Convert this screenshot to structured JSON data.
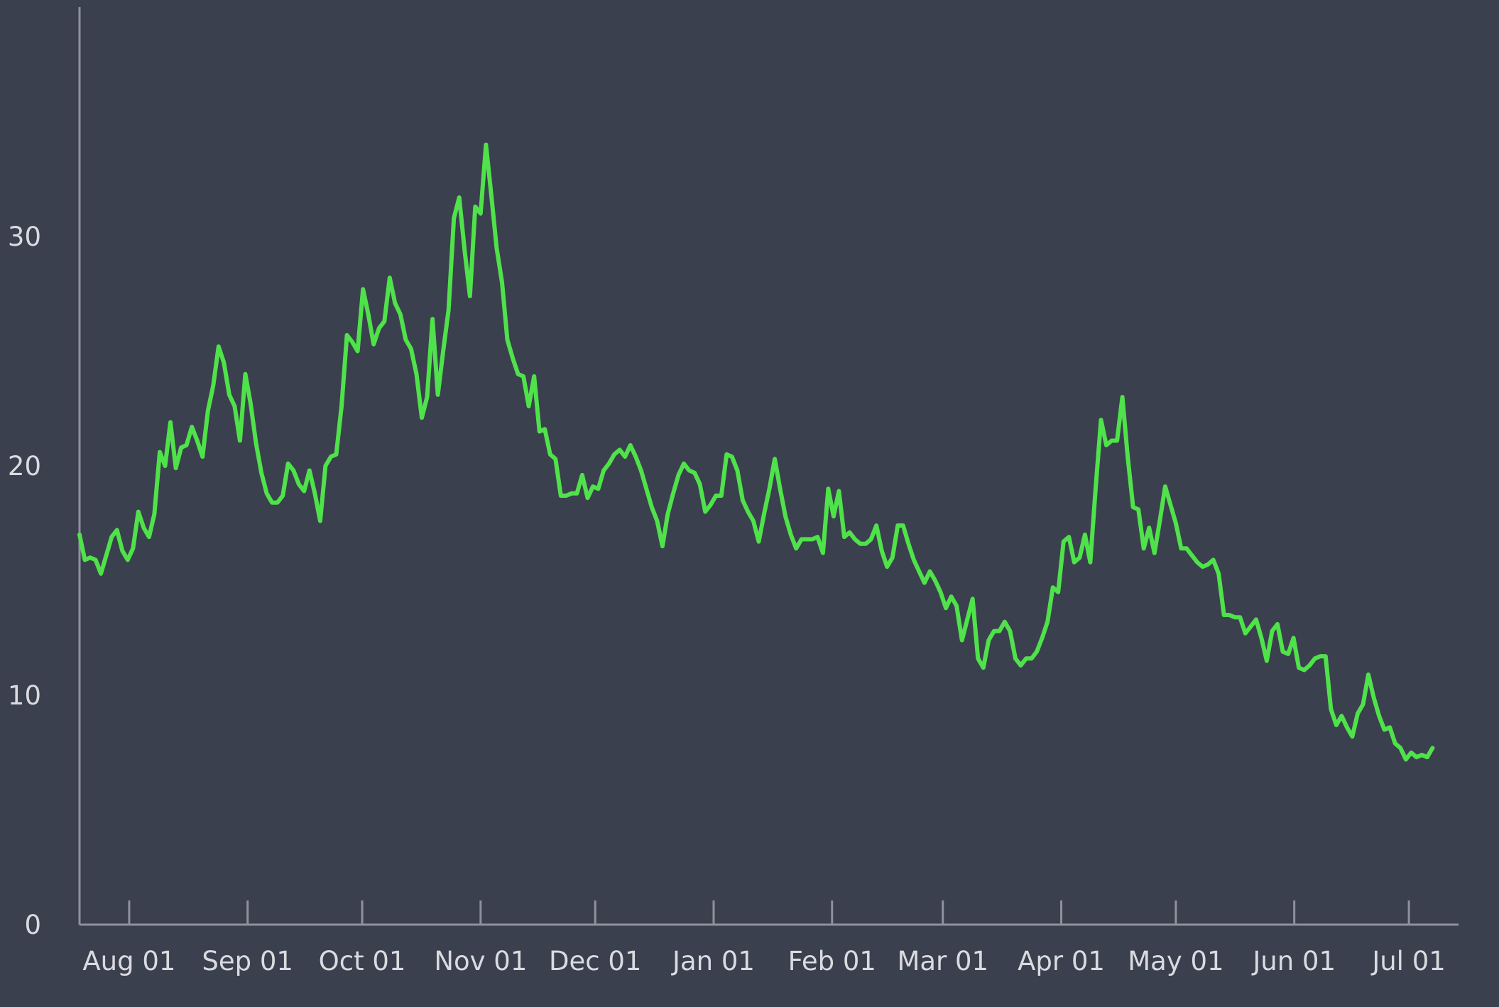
{
  "chart_data": {
    "type": "line",
    "title": "",
    "xlabel": "",
    "ylabel": "",
    "x_start": "2023-07-19",
    "x_step_days": 1.4,
    "xlim": [
      "2023-07-19",
      "2024-07-14"
    ],
    "ylim": [
      0,
      40
    ],
    "y_ticks": [
      0,
      10,
      20,
      30
    ],
    "y_tick_labels": [
      "0",
      "10",
      "20",
      "30"
    ],
    "x_ticks": [
      "2023-08-01",
      "2023-09-01",
      "2023-10-01",
      "2023-11-01",
      "2023-12-01",
      "2024-01-01",
      "2024-02-01",
      "2024-03-01",
      "2024-04-01",
      "2024-05-01",
      "2024-06-01",
      "2024-07-01"
    ],
    "x_tick_labels": [
      "Aug 01",
      "Sep 01",
      "Oct 01",
      "Nov 01",
      "Dec 01",
      "Jan 01",
      "Feb 01",
      "Mar 01",
      "Apr 01",
      "May 01",
      "Jun 01",
      "Jul 01"
    ],
    "grid": false,
    "colors": {
      "background": "#3b404e",
      "line": "#4fe24a",
      "axis": "#8e929c",
      "text": "#d9dbe0"
    },
    "series": [
      {
        "values": [
          17.0,
          15.9,
          16.0,
          15.9,
          15.3,
          16.1,
          16.9,
          17.2,
          16.3,
          15.9,
          16.4,
          18.0,
          17.3,
          16.9,
          17.9,
          20.6,
          20.0,
          21.9,
          19.9,
          20.8,
          20.9,
          21.7,
          21.1,
          20.4,
          22.4,
          23.5,
          25.2,
          24.5,
          23.1,
          22.6,
          21.1,
          24.0,
          22.7,
          21.0,
          19.7,
          18.8,
          18.4,
          18.4,
          18.7,
          20.1,
          19.8,
          19.2,
          18.9,
          19.8,
          18.8,
          17.6,
          20.0,
          20.4,
          20.5,
          22.6,
          25.7,
          25.4,
          25.0,
          27.7,
          26.6,
          25.3,
          26.0,
          26.3,
          28.2,
          27.1,
          26.6,
          25.5,
          25.1,
          24.0,
          22.1,
          23.0,
          26.4,
          23.1,
          25.0,
          26.8,
          30.8,
          31.7,
          29.4,
          27.4,
          31.3,
          31.0,
          34.0,
          31.8,
          29.5,
          28.0,
          25.5,
          24.7,
          24.0,
          23.9,
          22.6,
          23.9,
          21.5,
          21.6,
          20.5,
          20.3,
          18.7,
          18.7,
          18.8,
          18.8,
          19.6,
          18.6,
          19.1,
          19.0,
          19.8,
          20.1,
          20.5,
          20.7,
          20.4,
          20.9,
          20.4,
          19.8,
          19.0,
          18.2,
          17.6,
          16.5,
          17.9,
          18.8,
          19.6,
          20.1,
          19.8,
          19.7,
          19.2,
          18.0,
          18.3,
          18.7,
          18.7,
          20.5,
          20.4,
          19.8,
          18.5,
          18.0,
          17.6,
          16.7,
          17.9,
          19.0,
          20.3,
          19.0,
          17.8,
          17.0,
          16.4,
          16.8,
          16.8,
          16.8,
          16.9,
          16.2,
          19.0,
          17.8,
          18.9,
          16.9,
          17.1,
          16.8,
          16.6,
          16.6,
          16.8,
          17.4,
          16.3,
          15.6,
          16.0,
          17.4,
          17.4,
          16.6,
          15.9,
          15.4,
          14.9,
          15.4,
          15.0,
          14.5,
          13.8,
          14.3,
          13.9,
          12.4,
          13.3,
          14.2,
          11.6,
          11.2,
          12.4,
          12.8,
          12.8,
          13.2,
          12.8,
          11.6,
          11.3,
          11.6,
          11.6,
          11.9,
          12.5,
          13.2,
          14.7,
          14.5,
          16.7,
          16.9,
          15.8,
          16.0,
          17.0,
          15.8,
          19.0,
          22.0,
          20.9,
          21.1,
          21.1,
          23.0,
          20.4,
          18.2,
          18.1,
          16.4,
          17.3,
          16.2,
          17.6,
          19.1,
          18.3,
          17.5,
          16.4,
          16.4,
          16.1,
          15.8,
          15.6,
          15.7,
          15.9,
          15.3,
          13.5,
          13.5,
          13.4,
          13.4,
          12.7,
          13.0,
          13.3,
          12.5,
          11.5,
          12.8,
          13.1,
          11.9,
          11.8,
          12.5,
          11.2,
          11.1,
          11.3,
          11.6,
          11.7,
          11.7,
          9.4,
          8.7,
          9.1,
          8.6,
          8.2,
          9.2,
          9.6,
          10.9,
          9.9,
          9.1,
          8.5,
          8.6,
          7.9,
          7.7,
          7.2,
          7.5,
          7.3,
          7.4,
          7.3,
          7.7
        ]
      }
    ]
  }
}
